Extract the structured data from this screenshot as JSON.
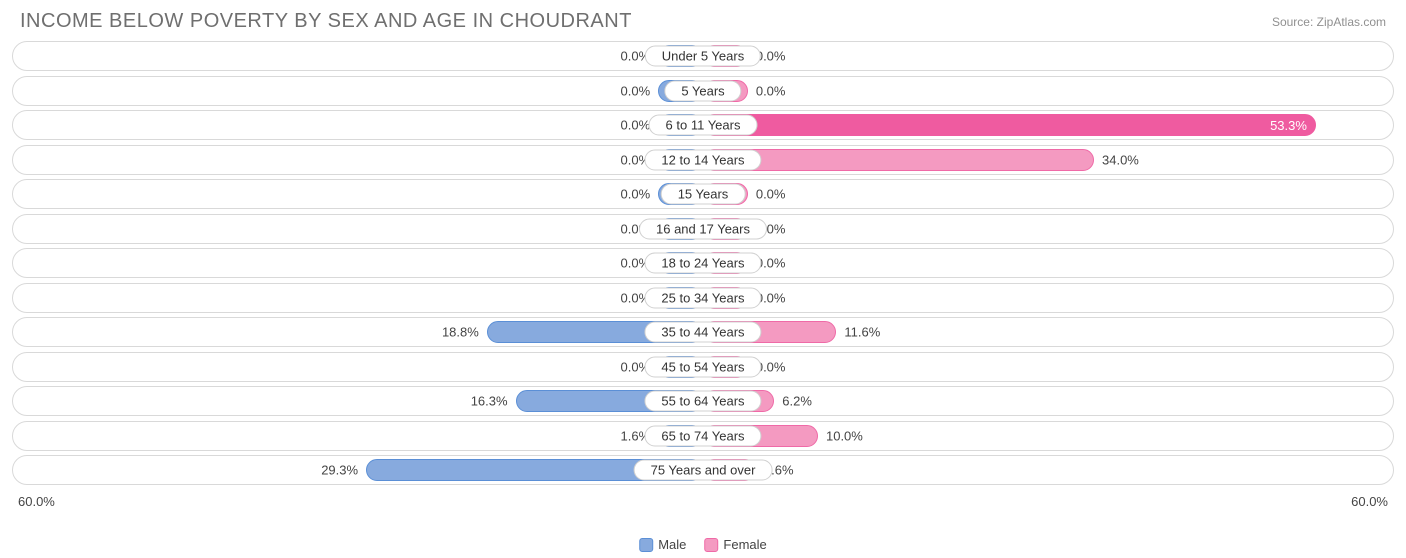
{
  "title": "INCOME BELOW POVERTY BY SEX AND AGE IN CHOUDRANT",
  "source": "Source: ZipAtlas.com",
  "axis_max": 60.0,
  "axis_label_left": "60.0%",
  "axis_label_right": "60.0%",
  "min_bar_pct": 6.5,
  "colors": {
    "male_fill": "#87aade",
    "male_border": "#5b8fd6",
    "male_solid": "#5b8fd6",
    "female_fill": "#f49ac1",
    "female_border": "#ef6aa7",
    "female_solid": "#ef5ba0",
    "track_border": "#d9d9d9",
    "text": "#444444",
    "title": "#6f6f6f",
    "source": "#909090",
    "background": "#ffffff"
  },
  "legend": {
    "male": "Male",
    "female": "Female"
  },
  "rows": [
    {
      "category": "Under 5 Years",
      "male": 0.0,
      "female": 0.0
    },
    {
      "category": "5 Years",
      "male": 0.0,
      "female": 0.0
    },
    {
      "category": "6 to 11 Years",
      "male": 0.0,
      "female": 53.3
    },
    {
      "category": "12 to 14 Years",
      "male": 0.0,
      "female": 34.0
    },
    {
      "category": "15 Years",
      "male": 0.0,
      "female": 0.0
    },
    {
      "category": "16 and 17 Years",
      "male": 0.0,
      "female": 0.0
    },
    {
      "category": "18 to 24 Years",
      "male": 0.0,
      "female": 0.0
    },
    {
      "category": "25 to 34 Years",
      "male": 0.0,
      "female": 0.0
    },
    {
      "category": "35 to 44 Years",
      "male": 18.8,
      "female": 11.6
    },
    {
      "category": "45 to 54 Years",
      "male": 0.0,
      "female": 0.0
    },
    {
      "category": "55 to 64 Years",
      "male": 16.3,
      "female": 6.2
    },
    {
      "category": "65 to 74 Years",
      "male": 1.6,
      "female": 10.0
    },
    {
      "category": "75 Years and over",
      "male": 29.3,
      "female": 4.6
    }
  ]
}
